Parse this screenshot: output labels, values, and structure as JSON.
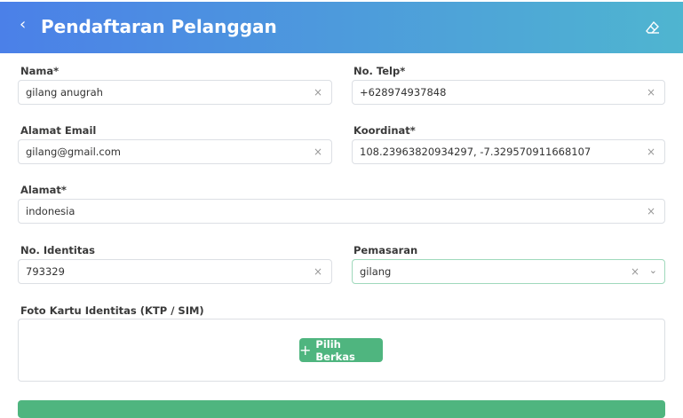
{
  "header": {
    "title": "Pendaftaran Pelanggan",
    "back_icon": "chevron-left-icon",
    "action_icon": "eraser-icon"
  },
  "form": {
    "nama": {
      "label": "Nama*",
      "value": "gilang anugrah"
    },
    "telp": {
      "label": "No. Telp*",
      "value": "+628974937848"
    },
    "email": {
      "label": "Alamat Email",
      "value": "gilang@gmail.com"
    },
    "koordinat": {
      "label": "Koordinat*",
      "value": "108.23963820934297, -7.329570911668107"
    },
    "alamat": {
      "label": "Alamat*",
      "value": "indonesia"
    },
    "identitas": {
      "label": "No. Identitas",
      "value": "793329"
    },
    "pemasaran": {
      "label": "Pemasaran",
      "value": "gilang"
    },
    "foto": {
      "label": "Foto Kartu Identitas (KTP / SIM)",
      "button": "Pilih Berkas"
    },
    "clear_glyph": "×"
  },
  "colors": {
    "accent": "#4fb57f",
    "header_start": "#4b80e8",
    "header_end": "#4fb5d0"
  }
}
